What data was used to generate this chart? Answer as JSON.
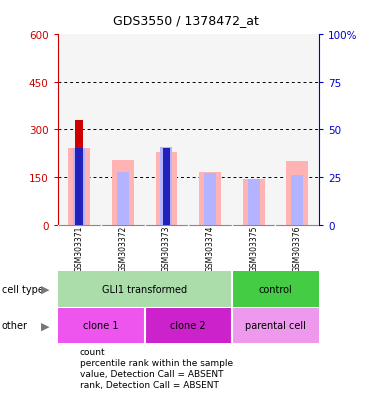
{
  "title": "GDS3550 / 1378472_at",
  "samples": [
    "GSM303371",
    "GSM303372",
    "GSM303373",
    "GSM303374",
    "GSM303375",
    "GSM303376"
  ],
  "count_values": [
    330,
    0,
    230,
    0,
    0,
    0
  ],
  "percentile_values": [
    240,
    0,
    240,
    0,
    0,
    0
  ],
  "value_absent": [
    240,
    205,
    230,
    165,
    145,
    200
  ],
  "rank_absent": [
    242,
    165,
    245,
    163,
    145,
    155
  ],
  "ylim_left": [
    0,
    600
  ],
  "ylim_right": [
    0,
    100
  ],
  "yticks_left": [
    0,
    150,
    300,
    450,
    600
  ],
  "ytick_labels_left": [
    "0",
    "150",
    "300",
    "450",
    "600"
  ],
  "yticks_right": [
    0,
    25,
    50,
    75,
    100
  ],
  "ytick_labels_right": [
    "0",
    "25",
    "50",
    "75",
    "100%"
  ],
  "color_count": "#cc0000",
  "color_percentile": "#2222bb",
  "color_value_absent": "#ffb3b3",
  "color_rank_absent": "#b3b3ff",
  "left_axis_color": "#cc0000",
  "right_axis_color": "#0000cc",
  "plot_bg": "#f5f5f5",
  "cell_type_groups": [
    {
      "label": "GLI1 transformed",
      "span": [
        0,
        3
      ],
      "color": "#aaddaa"
    },
    {
      "label": "control",
      "span": [
        4,
        5
      ],
      "color": "#44cc44"
    }
  ],
  "other_groups": [
    {
      "label": "clone 1",
      "span": [
        0,
        1
      ],
      "color": "#ee55ee"
    },
    {
      "label": "clone 2",
      "span": [
        2,
        3
      ],
      "color": "#cc22cc"
    },
    {
      "label": "parental cell",
      "span": [
        4,
        5
      ],
      "color": "#ee99ee"
    }
  ],
  "legend_items": [
    {
      "label": "count",
      "color": "#cc0000"
    },
    {
      "label": "percentile rank within the sample",
      "color": "#2222bb"
    },
    {
      "label": "value, Detection Call = ABSENT",
      "color": "#ffb3b3"
    },
    {
      "label": "rank, Detection Call = ABSENT",
      "color": "#b3b3ff"
    }
  ],
  "cell_type_label": "cell type",
  "other_label": "other",
  "sample_bg": "#c8c8c8"
}
